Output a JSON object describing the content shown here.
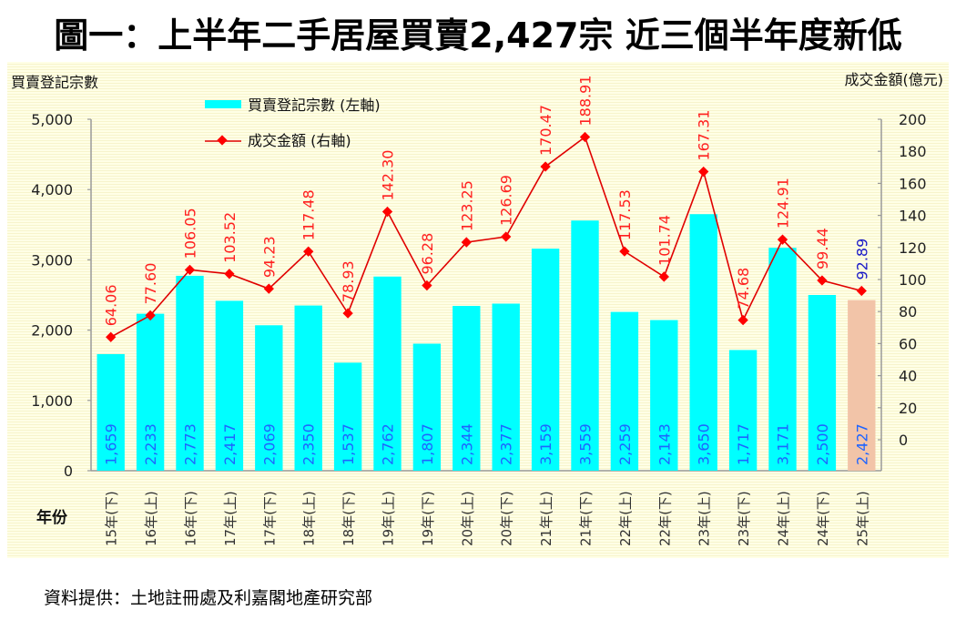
{
  "title": "圖一：上半年二手居屋買賣2,427宗 近三個半年度新低",
  "source": "資料提供：土地註冊處及利嘉閣地產研究部",
  "chart_data": {
    "type": "bar",
    "title": "圖一：上半年二手居屋買賣2,427宗 近三個半年度新低",
    "xlabel": "年份",
    "ylabel": "買賣登記宗數",
    "y2label": "成交金額(億元)",
    "ylim": [
      0,
      5000
    ],
    "y2lim": [
      0,
      200
    ],
    "yticks": [
      "0",
      "1,000",
      "2,000",
      "3,000",
      "4,000",
      "5,000"
    ],
    "y2ticks": [
      "0",
      "20",
      "40",
      "60",
      "80",
      "100",
      "120",
      "140",
      "160",
      "180",
      "200"
    ],
    "grid": false,
    "legend": {
      "position": "top-left",
      "entries": [
        "買賣登記宗數 (左軸)",
        "成交金額 (右軸)"
      ]
    },
    "categories": [
      "15年(下)",
      "16年(上)",
      "16年(下)",
      "17年(上)",
      "17年(下)",
      "18年(上)",
      "18年(下)",
      "19年(上)",
      "19年(下)",
      "20年(上)",
      "20年(下)",
      "21年(上)",
      "21年(下)",
      "22年(上)",
      "22年(下)",
      "23年(上)",
      "23年(下)",
      "24年(上)",
      "24年(下)",
      "25年(上)"
    ],
    "series": [
      {
        "name": "買賣登記宗數 (左軸)",
        "type": "bar",
        "axis": "left",
        "color": "#00FFFF",
        "highlight_color": "#F2C4A8",
        "highlight_index": 19,
        "values": [
          1659,
          2233,
          2773,
          2417,
          2069,
          2350,
          1537,
          2762,
          1807,
          2344,
          2377,
          3159,
          3559,
          2259,
          2143,
          3650,
          1717,
          3171,
          2500,
          2427
        ],
        "labels": [
          "1,659",
          "2,233",
          "2,773",
          "2,417",
          "2,069",
          "2,350",
          "1,537",
          "2,762",
          "1,807",
          "2,344",
          "2,377",
          "3,159",
          "3,559",
          "2,259",
          "2,143",
          "3,650",
          "1,717",
          "3,171",
          "2,500",
          "2,427"
        ],
        "label_color": "#1E64FF"
      },
      {
        "name": "成交金額 (右軸)",
        "type": "line",
        "axis": "right",
        "color": "#E00000",
        "marker_color": "#FF0000",
        "last_label_color": "#1A1AC8",
        "values": [
          64.06,
          77.6,
          106.05,
          103.52,
          94.23,
          117.48,
          78.93,
          142.3,
          96.28,
          123.25,
          126.69,
          170.47,
          188.91,
          117.53,
          101.74,
          167.31,
          74.68,
          124.91,
          99.44,
          92.89
        ],
        "labels": [
          "64.06",
          "77.60",
          "106.05",
          "103.52",
          "94.23",
          "117.48",
          "78.93",
          "142.30",
          "96.28",
          "123.25",
          "126.69",
          "170.47",
          "188.91",
          "117.53",
          "101.74",
          "167.31",
          "74.68",
          "124.91",
          "99.44",
          "92.89"
        ]
      }
    ]
  }
}
